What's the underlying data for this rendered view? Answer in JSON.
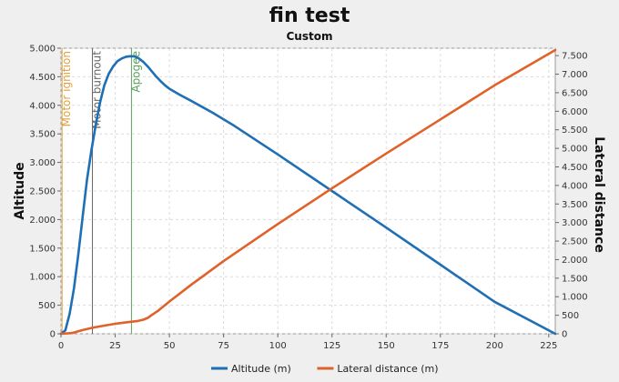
{
  "chart_data": {
    "type": "line",
    "title": "fin test",
    "subtitle": "Custom",
    "xlabel": "",
    "ylabel": "Altitude",
    "ylabel_right": "Lateral distance",
    "xlim": [
      0,
      228
    ],
    "ylim": [
      0,
      5000
    ],
    "ylim_right": [
      0,
      7700
    ],
    "x_ticks": [
      0,
      25,
      50,
      75,
      100,
      125,
      150,
      175,
      200,
      225
    ],
    "x_tick_labels": [
      "0",
      "25",
      "50",
      "75",
      "100",
      "125",
      "150",
      "175",
      "200",
      "225"
    ],
    "y_ticks": [
      0,
      500,
      1000,
      1500,
      2000,
      2500,
      3000,
      3500,
      4000,
      4500,
      5000
    ],
    "y_tick_labels": [
      "0",
      "500",
      "1.000",
      "1.500",
      "2.000",
      "2.500",
      "3.000",
      "3.500",
      "4.000",
      "4.500",
      "5.000"
    ],
    "y_right_ticks": [
      0,
      500,
      1000,
      1500,
      2000,
      2500,
      3000,
      3500,
      4000,
      4500,
      5000,
      5500,
      6000,
      6500,
      7000,
      7500
    ],
    "y_right_tick_labels": [
      "0",
      "500",
      "1.000",
      "1.500",
      "2.000",
      "2.500",
      "3.000",
      "3.500",
      "4.000",
      "4.500",
      "5.000",
      "5.500",
      "6.000",
      "6.500",
      "7.000",
      "7.500"
    ],
    "grid": true,
    "legend_position": "bottom",
    "events": [
      {
        "label": "Motor ignition",
        "x": 0.5,
        "color": "#e0a040"
      },
      {
        "label": "Motor burnout",
        "x": 14.5,
        "color": "#666666"
      },
      {
        "label": "Apogee",
        "x": 32.5,
        "color": "#5aa05a"
      }
    ],
    "series": [
      {
        "name": "Altitude (m)",
        "axis": "left",
        "color": "#1f6fb5",
        "x": [
          0,
          2,
          4,
          6,
          8,
          10,
          12,
          14,
          16,
          18,
          20,
          22,
          24,
          26,
          28,
          30,
          32,
          34,
          36,
          38,
          40,
          42,
          44,
          46,
          48,
          50,
          55,
          60,
          70,
          80,
          100,
          125,
          150,
          175,
          200,
          228
        ],
        "y": [
          0,
          60,
          350,
          800,
          1400,
          2050,
          2700,
          3200,
          3650,
          4050,
          4350,
          4550,
          4680,
          4770,
          4820,
          4850,
          4860,
          4855,
          4820,
          4760,
          4680,
          4590,
          4500,
          4420,
          4350,
          4290,
          4180,
          4080,
          3870,
          3640,
          3140,
          2500,
          1860,
          1210,
          560,
          0
        ]
      },
      {
        "name": "Lateral distance (m)",
        "axis": "right",
        "color": "#e0622a",
        "x": [
          0,
          5,
          10,
          15,
          20,
          25,
          30,
          35,
          38,
          40,
          42,
          45,
          50,
          60,
          75,
          100,
          125,
          150,
          175,
          200,
          228
        ],
        "y": [
          0,
          20,
          100,
          170,
          220,
          270,
          310,
          340,
          380,
          430,
          510,
          630,
          870,
          1320,
          1960,
          2960,
          3920,
          4860,
          5780,
          6700,
          7650
        ]
      }
    ]
  }
}
